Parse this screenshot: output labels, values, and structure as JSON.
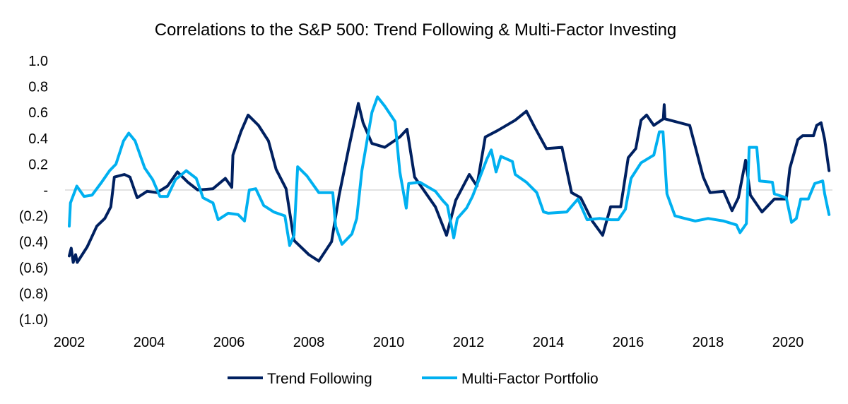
{
  "chart_data": {
    "type": "line",
    "title": "Correlations to the S&P 500: Trend Following & Multi-Factor Investing",
    "xlabel": "",
    "ylabel": "",
    "ylim": [
      -1.0,
      1.0
    ],
    "xlim": [
      2002,
      2021.1
    ],
    "grid": false,
    "legend_position": "bottom",
    "y_ticks": [
      {
        "value": 1.0,
        "label": "1.0"
      },
      {
        "value": 0.8,
        "label": "0.8"
      },
      {
        "value": 0.6,
        "label": "0.6"
      },
      {
        "value": 0.4,
        "label": "0.4"
      },
      {
        "value": 0.2,
        "label": "0.2"
      },
      {
        "value": 0.0,
        "label": "-"
      },
      {
        "value": -0.2,
        "label": "(0.2)"
      },
      {
        "value": -0.4,
        "label": "(0.4)"
      },
      {
        "value": -0.6,
        "label": "(0.6)"
      },
      {
        "value": -0.8,
        "label": "(0.8)"
      },
      {
        "value": -1.0,
        "label": "(1.0)"
      }
    ],
    "x_ticks": [
      {
        "value": 2002,
        "label": "2002"
      },
      {
        "value": 2004,
        "label": "2004"
      },
      {
        "value": 2006,
        "label": "2006"
      },
      {
        "value": 2008,
        "label": "2008"
      },
      {
        "value": 2010,
        "label": "2010"
      },
      {
        "value": 2012,
        "label": "2012"
      },
      {
        "value": 2014,
        "label": "2014"
      },
      {
        "value": 2016,
        "label": "2016"
      },
      {
        "value": 2018,
        "label": "2018"
      },
      {
        "value": 2020,
        "label": "2020"
      }
    ],
    "series": [
      {
        "name": "Trend Following",
        "color": "#002060",
        "points": [
          [
            2002.0,
            -0.51
          ],
          [
            2002.05,
            -0.45
          ],
          [
            2002.1,
            -0.56
          ],
          [
            2002.16,
            -0.5
          ],
          [
            2002.2,
            -0.56
          ],
          [
            2002.45,
            -0.44
          ],
          [
            2002.69,
            -0.28
          ],
          [
            2002.89,
            -0.22
          ],
          [
            2003.04,
            -0.13
          ],
          [
            2003.13,
            0.1
          ],
          [
            2003.38,
            0.12
          ],
          [
            2003.52,
            0.1
          ],
          [
            2003.7,
            -0.06
          ],
          [
            2003.95,
            -0.01
          ],
          [
            2004.2,
            -0.02
          ],
          [
            2004.46,
            0.03
          ],
          [
            2004.71,
            0.14
          ],
          [
            2004.97,
            0.06
          ],
          [
            2005.22,
            0.0
          ],
          [
            2005.6,
            0.01
          ],
          [
            2005.91,
            0.09
          ],
          [
            2006.07,
            0.02
          ],
          [
            2006.1,
            0.27
          ],
          [
            2006.3,
            0.45
          ],
          [
            2006.48,
            0.58
          ],
          [
            2006.74,
            0.5
          ],
          [
            2006.99,
            0.38
          ],
          [
            2007.18,
            0.16
          ],
          [
            2007.43,
            0.01
          ],
          [
            2007.63,
            -0.39
          ],
          [
            2008.0,
            -0.5
          ],
          [
            2008.25,
            -0.55
          ],
          [
            2008.57,
            -0.4
          ],
          [
            2008.76,
            -0.04
          ],
          [
            2009.01,
            0.34
          ],
          [
            2009.24,
            0.67
          ],
          [
            2009.36,
            0.52
          ],
          [
            2009.58,
            0.36
          ],
          [
            2009.9,
            0.33
          ],
          [
            2010.28,
            0.41
          ],
          [
            2010.46,
            0.47
          ],
          [
            2010.65,
            0.1
          ],
          [
            2011.17,
            -0.13
          ],
          [
            2011.45,
            -0.35
          ],
          [
            2011.68,
            -0.08
          ],
          [
            2012.02,
            0.12
          ],
          [
            2012.21,
            0.03
          ],
          [
            2012.42,
            0.41
          ],
          [
            2012.73,
            0.46
          ],
          [
            2013.17,
            0.54
          ],
          [
            2013.45,
            0.61
          ],
          [
            2013.65,
            0.49
          ],
          [
            2013.95,
            0.32
          ],
          [
            2014.34,
            0.33
          ],
          [
            2014.58,
            -0.02
          ],
          [
            2014.81,
            -0.06
          ],
          [
            2015.1,
            -0.24
          ],
          [
            2015.36,
            -0.35
          ],
          [
            2015.56,
            -0.13
          ],
          [
            2015.81,
            -0.13
          ],
          [
            2016.0,
            0.25
          ],
          [
            2016.19,
            0.32
          ],
          [
            2016.32,
            0.54
          ],
          [
            2016.46,
            0.58
          ],
          [
            2016.64,
            0.5
          ],
          [
            2016.88,
            0.55
          ],
          [
            2016.9,
            0.66
          ],
          [
            2016.92,
            0.55
          ],
          [
            2017.54,
            0.5
          ],
          [
            2017.88,
            0.1
          ],
          [
            2018.05,
            -0.02
          ],
          [
            2018.39,
            -0.01
          ],
          [
            2018.6,
            -0.16
          ],
          [
            2018.76,
            -0.06
          ],
          [
            2018.94,
            0.23
          ],
          [
            2019.06,
            -0.04
          ],
          [
            2019.35,
            -0.17
          ],
          [
            2019.66,
            -0.07
          ],
          [
            2019.96,
            -0.07
          ],
          [
            2020.05,
            0.17
          ],
          [
            2020.25,
            0.39
          ],
          [
            2020.37,
            0.42
          ],
          [
            2020.64,
            0.42
          ],
          [
            2020.72,
            0.5
          ],
          [
            2020.83,
            0.52
          ],
          [
            2020.92,
            0.39
          ],
          [
            2021.03,
            0.15
          ]
        ]
      },
      {
        "name": "Multi-Factor Portfolio",
        "color": "#00B0F0",
        "points": [
          [
            2002.0,
            -0.28
          ],
          [
            2002.03,
            -0.1
          ],
          [
            2002.19,
            0.03
          ],
          [
            2002.37,
            -0.05
          ],
          [
            2002.57,
            -0.04
          ],
          [
            2002.81,
            0.06
          ],
          [
            2003.01,
            0.15
          ],
          [
            2003.17,
            0.2
          ],
          [
            2003.36,
            0.38
          ],
          [
            2003.49,
            0.44
          ],
          [
            2003.65,
            0.38
          ],
          [
            2003.89,
            0.17
          ],
          [
            2004.09,
            0.08
          ],
          [
            2004.27,
            -0.05
          ],
          [
            2004.46,
            -0.05
          ],
          [
            2004.66,
            0.08
          ],
          [
            2004.93,
            0.15
          ],
          [
            2005.18,
            0.09
          ],
          [
            2005.35,
            -0.06
          ],
          [
            2005.6,
            -0.1
          ],
          [
            2005.73,
            -0.23
          ],
          [
            2005.98,
            -0.18
          ],
          [
            2006.23,
            -0.19
          ],
          [
            2006.39,
            -0.24
          ],
          [
            2006.51,
            0.0
          ],
          [
            2006.67,
            0.01
          ],
          [
            2006.87,
            -0.12
          ],
          [
            2007.12,
            -0.17
          ],
          [
            2007.4,
            -0.2
          ],
          [
            2007.52,
            -0.43
          ],
          [
            2007.63,
            -0.35
          ],
          [
            2007.72,
            0.18
          ],
          [
            2007.95,
            0.11
          ],
          [
            2008.25,
            -0.02
          ],
          [
            2008.6,
            -0.02
          ],
          [
            2008.67,
            -0.28
          ],
          [
            2008.83,
            -0.42
          ],
          [
            2009.08,
            -0.34
          ],
          [
            2009.2,
            -0.22
          ],
          [
            2009.33,
            0.15
          ],
          [
            2009.58,
            0.6
          ],
          [
            2009.72,
            0.72
          ],
          [
            2009.9,
            0.65
          ],
          [
            2010.16,
            0.53
          ],
          [
            2010.28,
            0.14
          ],
          [
            2010.44,
            -0.14
          ],
          [
            2010.5,
            0.05
          ],
          [
            2010.78,
            0.06
          ],
          [
            2011.17,
            -0.01
          ],
          [
            2011.35,
            -0.08
          ],
          [
            2011.47,
            -0.12
          ],
          [
            2011.63,
            -0.37
          ],
          [
            2011.72,
            -0.22
          ],
          [
            2011.95,
            -0.14
          ],
          [
            2012.1,
            -0.05
          ],
          [
            2012.3,
            0.11
          ],
          [
            2012.46,
            0.24
          ],
          [
            2012.57,
            0.31
          ],
          [
            2012.69,
            0.14
          ],
          [
            2012.81,
            0.26
          ],
          [
            2013.1,
            0.22
          ],
          [
            2013.17,
            0.12
          ],
          [
            2013.45,
            0.06
          ],
          [
            2013.71,
            -0.02
          ],
          [
            2013.88,
            -0.17
          ],
          [
            2014.0,
            -0.18
          ],
          [
            2014.46,
            -0.17
          ],
          [
            2014.74,
            -0.07
          ],
          [
            2014.97,
            -0.23
          ],
          [
            2015.29,
            -0.22
          ],
          [
            2015.56,
            -0.23
          ],
          [
            2015.75,
            -0.23
          ],
          [
            2015.93,
            -0.15
          ],
          [
            2016.07,
            0.09
          ],
          [
            2016.32,
            0.21
          ],
          [
            2016.64,
            0.27
          ],
          [
            2016.78,
            0.45
          ],
          [
            2016.87,
            0.45
          ],
          [
            2016.97,
            -0.03
          ],
          [
            2017.17,
            -0.2
          ],
          [
            2017.42,
            -0.22
          ],
          [
            2017.68,
            -0.24
          ],
          [
            2018.0,
            -0.22
          ],
          [
            2018.39,
            -0.24
          ],
          [
            2018.71,
            -0.27
          ],
          [
            2018.8,
            -0.33
          ],
          [
            2018.96,
            -0.26
          ],
          [
            2019.03,
            0.33
          ],
          [
            2019.22,
            0.33
          ],
          [
            2019.29,
            0.07
          ],
          [
            2019.61,
            0.06
          ],
          [
            2019.66,
            -0.03
          ],
          [
            2019.96,
            -0.06
          ],
          [
            2020.09,
            -0.25
          ],
          [
            2020.21,
            -0.22
          ],
          [
            2020.32,
            -0.07
          ],
          [
            2020.51,
            -0.07
          ],
          [
            2020.67,
            0.05
          ],
          [
            2020.87,
            0.07
          ],
          [
            2020.92,
            -0.03
          ],
          [
            2021.03,
            -0.19
          ]
        ]
      }
    ]
  }
}
